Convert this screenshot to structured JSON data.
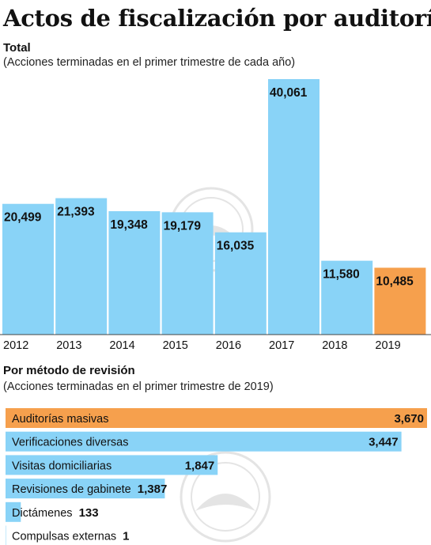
{
  "title": "Actos de fiscalización por auditoría",
  "colors": {
    "blue": "#89d3f7",
    "orange": "#f6a04d",
    "text": "#111111"
  },
  "chart_data": [
    {
      "type": "bar",
      "title": "Total",
      "subtitle": "(Acciones terminadas en el primer trimestre de cada año)",
      "categories": [
        "2012",
        "2013",
        "2014",
        "2015",
        "2016",
        "2017",
        "2018",
        "2019"
      ],
      "values": [
        20499,
        21393,
        19348,
        19179,
        16035,
        40061,
        11580,
        10485
      ],
      "value_labels": [
        "20,499",
        "21,393",
        "19,348",
        "19,179",
        "16,035",
        "40,061",
        "11,580",
        "10,485"
      ],
      "highlight_index": 7,
      "ylim": [
        0,
        40061
      ],
      "grid": false,
      "legend": "none"
    },
    {
      "type": "bar",
      "orientation": "horizontal",
      "title": "Por método de revisión",
      "subtitle": "(Acciones terminadas en el primer trimestre de 2019)",
      "categories": [
        "Auditorías masivas",
        "Verificaciones diversas",
        "Visitas domiciliarias",
        "Revisiones de gabinete",
        "Dictámenes",
        "Compulsas externas"
      ],
      "values": [
        3670,
        3447,
        1847,
        1387,
        133,
        1
      ],
      "value_labels": [
        "3,670",
        "3,447",
        "1,847",
        "1,387",
        "133",
        "1"
      ],
      "highlight_index": 0,
      "xlim": [
        0,
        3670
      ],
      "grid": false,
      "legend": "none"
    }
  ]
}
